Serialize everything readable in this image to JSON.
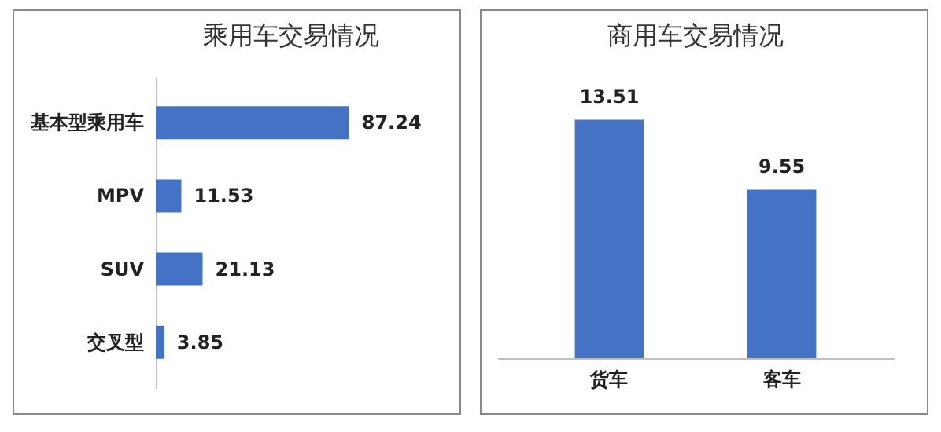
{
  "chart_data": [
    {
      "type": "bar",
      "title": "乘用车交易情况",
      "orientation": "horizontal",
      "categories": [
        "基本型乘用车",
        "MPV",
        "SUV",
        "交叉型"
      ],
      "values": [
        87.24,
        11.53,
        21.13,
        3.85
      ],
      "color": "#4472c4",
      "data_labels": true
    },
    {
      "type": "bar",
      "title": "商用车交易情况",
      "categories": [
        "货车",
        "客车"
      ],
      "values": [
        13.51,
        9.55
      ],
      "color": "#4472c4",
      "data_labels": true
    }
  ]
}
